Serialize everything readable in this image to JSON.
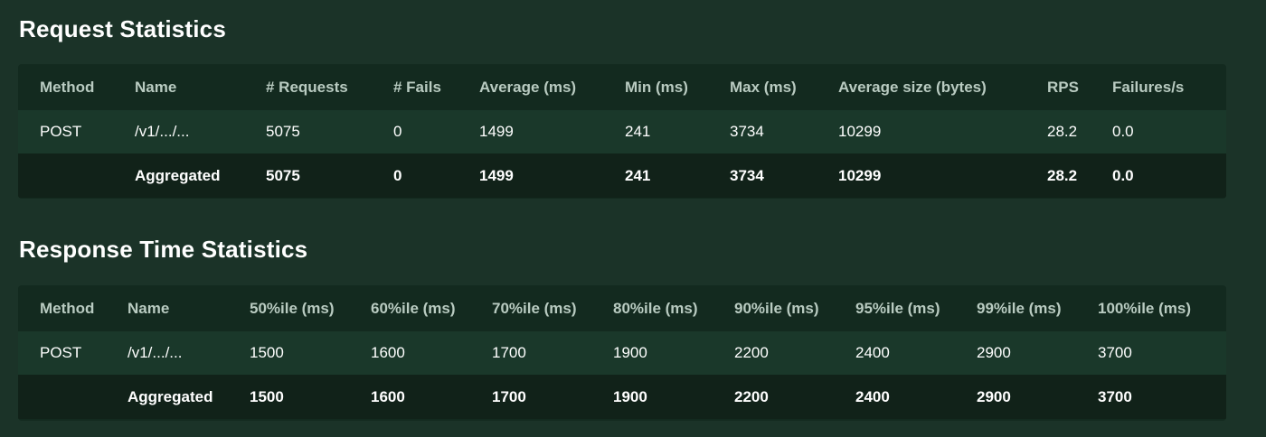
{
  "request_statistics": {
    "title": "Request Statistics",
    "headers": [
      "Method",
      "Name",
      "# Requests",
      "# Fails",
      "Average (ms)",
      "Min (ms)",
      "Max (ms)",
      "Average size (bytes)",
      "RPS",
      "Failures/s"
    ],
    "rows": [
      [
        "POST",
        "/v1/.../...",
        "5075",
        "0",
        "1499",
        "241",
        "3734",
        "10299",
        "28.2",
        "0.0"
      ]
    ],
    "aggregated": [
      "",
      "Aggregated",
      "5075",
      "0",
      "1499",
      "241",
      "3734",
      "10299",
      "28.2",
      "0.0"
    ]
  },
  "response_time_statistics": {
    "title": "Response Time Statistics",
    "headers": [
      "Method",
      "Name",
      "50%ile (ms)",
      "60%ile (ms)",
      "70%ile (ms)",
      "80%ile (ms)",
      "90%ile (ms)",
      "95%ile (ms)",
      "99%ile (ms)",
      "100%ile (ms)"
    ],
    "rows": [
      [
        "POST",
        "/v1/.../...",
        "1500",
        "1600",
        "1700",
        "1900",
        "2200",
        "2400",
        "2900",
        "3700"
      ]
    ],
    "aggregated": [
      "",
      "Aggregated",
      "1500",
      "1600",
      "1700",
      "1900",
      "2200",
      "2400",
      "2900",
      "3700"
    ]
  },
  "colors": {
    "page_background": "#1b3328",
    "table_header_background": "#132a1f",
    "data_row_background": "#1a382a",
    "aggregated_row_background": "#112219",
    "header_text": "#b9cbc1",
    "body_text": "#ffffff"
  }
}
